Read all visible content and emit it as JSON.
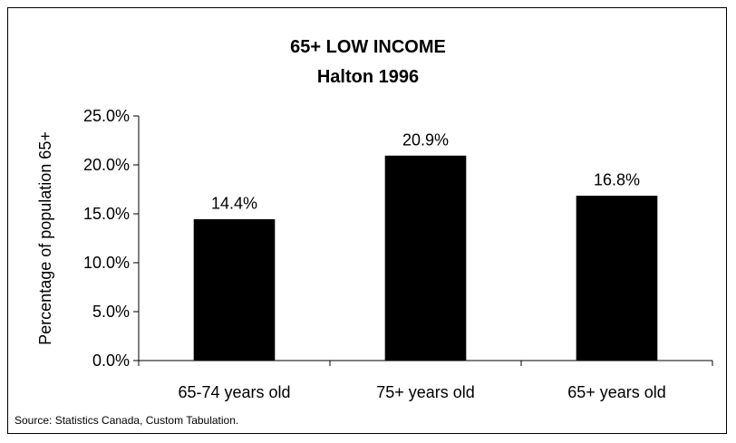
{
  "chart_data": {
    "type": "bar",
    "title": "65+ LOW INCOME",
    "subtitle": "Halton 1996",
    "ylabel": "Percentage of population 65+",
    "xlabel": "",
    "categories": [
      "65-74 years old",
      "75+ years old",
      "65+ years old"
    ],
    "values": [
      14.4,
      20.9,
      16.8
    ],
    "data_labels": [
      "14.4%",
      "20.9%",
      "16.8%"
    ],
    "ylim": [
      0,
      25
    ],
    "yticks": [
      0,
      5,
      10,
      15,
      20,
      25
    ],
    "ytick_labels": [
      "0.0%",
      "5.0%",
      "10.0%",
      "15.0%",
      "20.0%",
      "25.0%"
    ],
    "grid": false,
    "legend": "none",
    "bar_color": "#000000"
  },
  "source_note": "Source: Statistics Canada, Custom Tabulation."
}
